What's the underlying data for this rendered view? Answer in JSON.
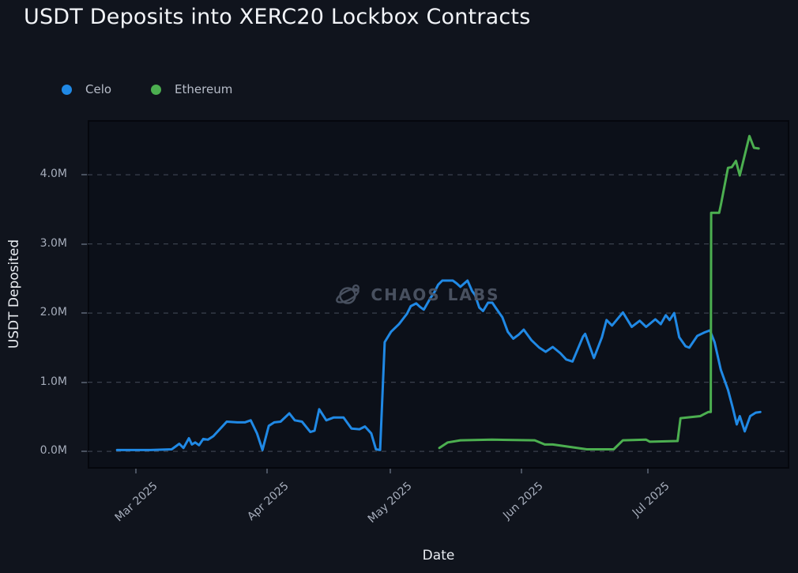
{
  "watermark": {
    "text": "CHAOS LABS"
  },
  "colors": {
    "background": "#10141d",
    "plot_background": "#0c1019",
    "plot_border": "#05070d",
    "grid": "#3a414e",
    "axis_tick": "#4a5260",
    "tick_label": "#a6adbb",
    "axis_label": "#e9ecf1",
    "title": "#f2f4f8",
    "legend_label": "#b7bdc9",
    "celo": "#2089e5",
    "ethereum": "#4caf50",
    "watermark": "#4e5665"
  },
  "chart_data": {
    "type": "line",
    "title": "USDT Deposits into XERC20 Lockbox Contracts",
    "xlabel": "Date",
    "ylabel": "USDT Deposited",
    "value_unit": "millions of USDT",
    "x_unit": "days since 2025-02-24",
    "xlim": [
      -7,
      160
    ],
    "ylim": [
      -0.25,
      4.79
    ],
    "grid": "horizontal dashed",
    "legend_position": "top-left",
    "y_ticks": [
      {
        "value": 0,
        "label": "0.0M"
      },
      {
        "value": 1,
        "label": "1.0M"
      },
      {
        "value": 2,
        "label": "2.0M"
      },
      {
        "value": 3,
        "label": "3.0M"
      },
      {
        "value": 4,
        "label": "4.0M"
      }
    ],
    "x_ticks": [
      {
        "day": 4.5,
        "label": "Mar 2025"
      },
      {
        "day": 35.7,
        "label": "Apr 2025"
      },
      {
        "day": 65.0,
        "label": "May 2025"
      },
      {
        "day": 96.2,
        "label": "Jun 2025"
      },
      {
        "day": 126.3,
        "label": "Jul 2025"
      }
    ],
    "series": [
      {
        "name": "Celo",
        "color": "#2089e5",
        "points": [
          [
            0,
            0.02
          ],
          [
            4,
            0.02
          ],
          [
            8,
            0.02
          ],
          [
            13,
            0.03
          ],
          [
            14.8,
            0.11
          ],
          [
            15.8,
            0.05
          ],
          [
            17.1,
            0.19
          ],
          [
            17.8,
            0.1
          ],
          [
            18.6,
            0.13
          ],
          [
            19.5,
            0.09
          ],
          [
            20.5,
            0.18
          ],
          [
            21.6,
            0.17
          ],
          [
            22.9,
            0.22
          ],
          [
            26.1,
            0.43
          ],
          [
            28.6,
            0.42
          ],
          [
            30.4,
            0.42
          ],
          [
            31.8,
            0.45
          ],
          [
            33.3,
            0.26
          ],
          [
            34.6,
            0.02
          ],
          [
            36.1,
            0.37
          ],
          [
            37.4,
            0.42
          ],
          [
            38.9,
            0.43
          ],
          [
            41.0,
            0.55
          ],
          [
            42.3,
            0.45
          ],
          [
            44.0,
            0.43
          ],
          [
            46.0,
            0.28
          ],
          [
            47.0,
            0.3
          ],
          [
            48.1,
            0.61
          ],
          [
            49.8,
            0.45
          ],
          [
            51.5,
            0.49
          ],
          [
            53.9,
            0.49
          ],
          [
            55.8,
            0.33
          ],
          [
            57.7,
            0.32
          ],
          [
            59.0,
            0.36
          ],
          [
            60.5,
            0.26
          ],
          [
            61.6,
            0.03
          ],
          [
            62.6,
            0.02
          ],
          [
            63.7,
            1.58
          ],
          [
            65.2,
            1.73
          ],
          [
            67.1,
            1.84
          ],
          [
            69.0,
            1.99
          ],
          [
            69.9,
            2.1
          ],
          [
            71.2,
            2.14
          ],
          [
            72.1,
            2.09
          ],
          [
            73.0,
            2.05
          ],
          [
            74.6,
            2.22
          ],
          [
            75.5,
            2.3
          ],
          [
            76.4,
            2.41
          ],
          [
            77.4,
            2.47
          ],
          [
            79.9,
            2.47
          ],
          [
            80.8,
            2.43
          ],
          [
            81.7,
            2.38
          ],
          [
            83.4,
            2.47
          ],
          [
            84.5,
            2.32
          ],
          [
            85.2,
            2.26
          ],
          [
            86.2,
            2.08
          ],
          [
            87.1,
            2.03
          ],
          [
            88.3,
            2.15
          ],
          [
            89.3,
            2.15
          ],
          [
            90.2,
            2.07
          ],
          [
            91.7,
            1.94
          ],
          [
            93.0,
            1.73
          ],
          [
            94.3,
            1.63
          ],
          [
            95.6,
            1.69
          ],
          [
            96.8,
            1.76
          ],
          [
            98.6,
            1.61
          ],
          [
            100.5,
            1.5
          ],
          [
            102.0,
            1.44
          ],
          [
            103.7,
            1.51
          ],
          [
            105.5,
            1.42
          ],
          [
            106.9,
            1.33
          ],
          [
            108.4,
            1.3
          ],
          [
            110.9,
            1.66
          ],
          [
            111.4,
            1.7
          ],
          [
            113.5,
            1.35
          ],
          [
            115.4,
            1.65
          ],
          [
            116.5,
            1.9
          ],
          [
            117.8,
            1.82
          ],
          [
            120.4,
            2.01
          ],
          [
            122.5,
            1.8
          ],
          [
            124.4,
            1.89
          ],
          [
            125.9,
            1.8
          ],
          [
            128.1,
            1.91
          ],
          [
            129.4,
            1.84
          ],
          [
            130.6,
            1.97
          ],
          [
            131.5,
            1.9
          ],
          [
            132.6,
            2.0
          ],
          [
            133.8,
            1.65
          ],
          [
            135.3,
            1.52
          ],
          [
            136.2,
            1.5
          ],
          [
            138.1,
            1.67
          ],
          [
            139.8,
            1.72
          ],
          [
            141.1,
            1.75
          ],
          [
            142.2,
            1.58
          ],
          [
            143.7,
            1.18
          ],
          [
            145.4,
            0.89
          ],
          [
            146.5,
            0.64
          ],
          [
            147.5,
            0.39
          ],
          [
            148.2,
            0.51
          ],
          [
            149.4,
            0.29
          ],
          [
            150.7,
            0.51
          ],
          [
            152.0,
            0.56
          ],
          [
            153.1,
            0.57
          ]
        ]
      },
      {
        "name": "Ethereum",
        "color": "#4caf50",
        "points": [
          [
            76.7,
            0.05
          ],
          [
            78.7,
            0.13
          ],
          [
            81.7,
            0.16
          ],
          [
            89.2,
            0.17
          ],
          [
            99.4,
            0.16
          ],
          [
            101.8,
            0.1
          ],
          [
            103.7,
            0.1
          ],
          [
            111.8,
            0.03
          ],
          [
            118.2,
            0.03
          ],
          [
            120.4,
            0.16
          ],
          [
            125.9,
            0.17
          ],
          [
            126.8,
            0.14
          ],
          [
            133.4,
            0.15
          ],
          [
            134.1,
            0.48
          ],
          [
            138.8,
            0.51
          ],
          [
            140.7,
            0.57
          ],
          [
            141.3,
            0.57
          ],
          [
            141.4,
            3.45
          ],
          [
            143.3,
            3.45
          ],
          [
            143.7,
            3.56
          ],
          [
            145.4,
            4.1
          ],
          [
            146.3,
            4.11
          ],
          [
            147.3,
            4.2
          ],
          [
            148.2,
            3.99
          ],
          [
            150.5,
            4.56
          ],
          [
            151.6,
            4.39
          ],
          [
            152.7,
            4.38
          ]
        ]
      }
    ]
  }
}
